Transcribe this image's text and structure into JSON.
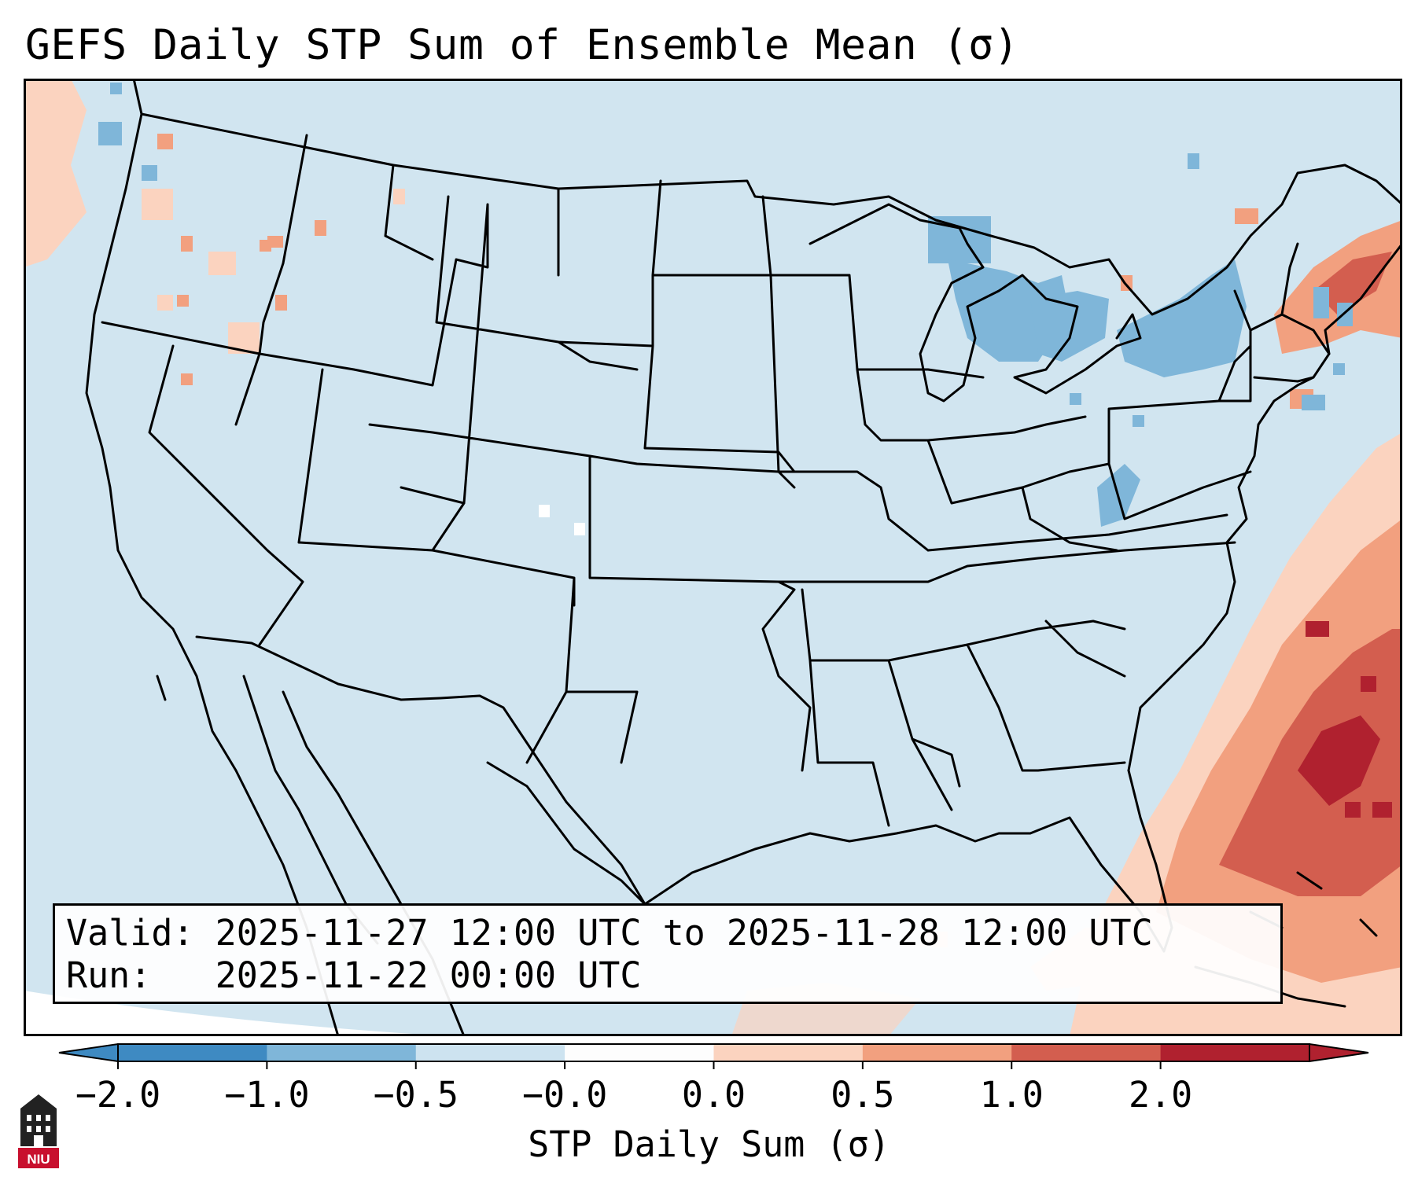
{
  "title": "GEFS Daily STP Sum of Ensemble Mean (σ)",
  "info": {
    "valid_line": "Valid: 2025-11-27 12:00 UTC to 2025-11-28 12:00 UTC",
    "run_line": "Run:   2025-11-22 00:00 UTC"
  },
  "colorbar": {
    "label": "STP Daily Sum (σ)",
    "ticks": [
      "−2.0",
      "−1.0",
      "−0.5",
      "−0.0",
      "0.0",
      "0.5",
      "1.0",
      "2.0"
    ],
    "colors": [
      "#3e8ac2",
      "#7fb6d9",
      "#cde3f0",
      "#fdfdfd",
      "#fbd3bf",
      "#f2a07f",
      "#d35e4f",
      "#b0212f"
    ],
    "extend": "both"
  },
  "map": {
    "background_color": "#d1e5f0",
    "boundary_color": "#000000",
    "projection": "lambert-conformal",
    "region": "CONUS"
  },
  "logo": {
    "text": "NIU",
    "color": "#c8102e"
  }
}
